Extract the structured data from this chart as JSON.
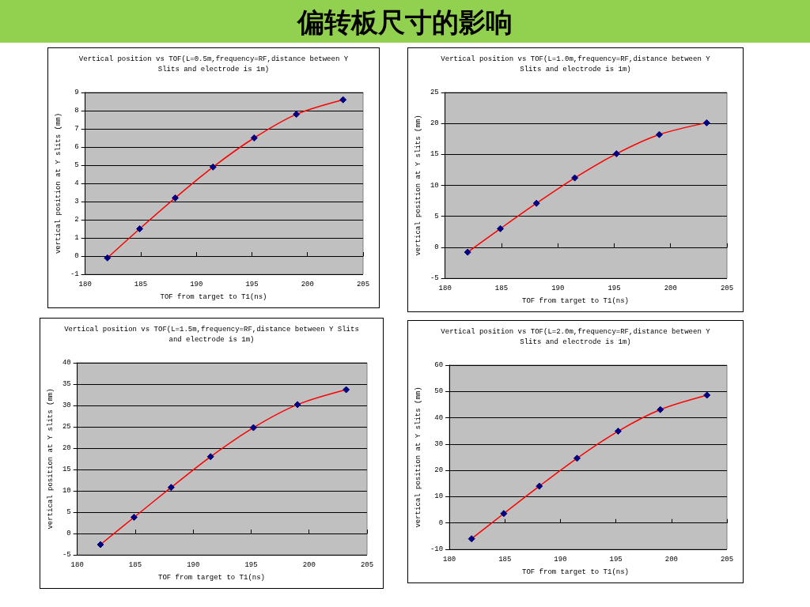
{
  "chart_data": [
    {
      "type": "line",
      "title": "Vertical position vs TOF(L=0.5m,frequency=RF,distance between Y Slits and electrode is 1m)",
      "xlabel": "TOF from target to T1(ns)",
      "ylabel": "vertical position at Y slits (mm)",
      "annotations": [
        "偏转板尺寸的影响"
      ],
      "x": [
        182,
        184.9,
        188.1,
        191.5,
        195.2,
        199,
        203.2
      ],
      "series": [
        {
          "color": "#ff0000",
          "colors": [
            "#000080",
            "#000080",
            "#000080",
            "#000080",
            "#000080",
            "#000080",
            "#000080"
          ],
          "values": [
            -0.1,
            1.5,
            3.2,
            4.9,
            6.5,
            7.8,
            8.6
          ]
        }
      ],
      "xlim": [
        180,
        205
      ],
      "xticks": [
        180,
        185,
        190,
        195,
        200,
        205
      ],
      "ylim": [
        -1,
        9
      ],
      "yticks": [
        -1,
        0,
        1,
        2,
        3,
        4,
        5,
        6,
        7,
        8,
        9
      ],
      "grid": "y",
      "marker": "diamond",
      "line_style": "solid"
    },
    {
      "type": "line",
      "title": "Vertical position vs TOF(L=1.0m,frequency=RF,distance between Y Slits and electrode is 1m)",
      "xlabel": "TOF from target to T1(ns)",
      "ylabel": "vertical position at Y slits (mm)",
      "x": [
        182,
        184.9,
        188.1,
        191.5,
        195.2,
        199,
        203.2
      ],
      "series": [
        {
          "color": "#ff0000",
          "colors": [
            "#000080",
            "#000080",
            "#000080",
            "#000080",
            "#000080",
            "#000080",
            "#000080"
          ],
          "values": [
            -0.8,
            3.0,
            7.1,
            11.2,
            15.1,
            18.2,
            20.1
          ]
        }
      ],
      "xlim": [
        180,
        205
      ],
      "xticks": [
        180,
        185,
        190,
        195,
        200,
        205
      ],
      "ylim": [
        -5,
        25
      ],
      "yticks": [
        -5,
        0,
        5,
        10,
        15,
        20,
        25
      ],
      "grid": "y",
      "marker": "diamond",
      "line_style": "solid"
    },
    {
      "type": "line",
      "title": "Vertical position vs TOF(L=1.5m,frequency=RF,distance between Y Slits and electrode is 1m)",
      "xlabel": "TOF from target to T1(ns)",
      "ylabel": "vertical position at Y slits (mm)",
      "x": [
        182,
        184.9,
        188.1,
        191.5,
        195.2,
        199,
        203.2
      ],
      "series": [
        {
          "color": "#ff0000",
          "colors": [
            "#000080",
            "#000080",
            "#000080",
            "#000080",
            "#000080",
            "#000080",
            "#000080"
          ],
          "values": [
            -2.6,
            3.8,
            10.8,
            18,
            24.8,
            30.2,
            33.7
          ]
        }
      ],
      "xlim": [
        180,
        205
      ],
      "xticks": [
        180,
        185,
        190,
        195,
        200,
        205
      ],
      "ylim": [
        -5,
        40
      ],
      "yticks": [
        -5,
        0,
        5,
        10,
        15,
        20,
        25,
        30,
        35,
        40
      ],
      "grid": "y",
      "marker": "diamond",
      "line_style": "solid"
    },
    {
      "type": "line",
      "title": "Vertical position vs TOF(L=2.0m,frequency=RF,distance between Y Slits and electrode is 1m)",
      "xlabel": "TOF from target to T1(ns)",
      "ylabel": "vertical position at Y slits (mm)",
      "x": [
        182,
        184.9,
        188.1,
        191.5,
        195.2,
        199,
        203.2
      ],
      "series": [
        {
          "color": "#ff0000",
          "colors": [
            "#000080",
            "#000080",
            "#000080",
            "#000080",
            "#000080",
            "#000080",
            "#000080"
          ],
          "values": [
            -6,
            3.6,
            14,
            24.6,
            34.9,
            43.1,
            48.6
          ]
        }
      ],
      "xlim": [
        180,
        205
      ],
      "xticks": [
        180,
        185,
        190,
        195,
        200,
        205
      ],
      "ylim": [
        -10,
        60
      ],
      "yticks": [
        -10,
        0,
        10,
        20,
        30,
        40,
        50,
        60
      ],
      "grid": "y",
      "marker": "diamond",
      "line_style": "solid"
    }
  ]
}
